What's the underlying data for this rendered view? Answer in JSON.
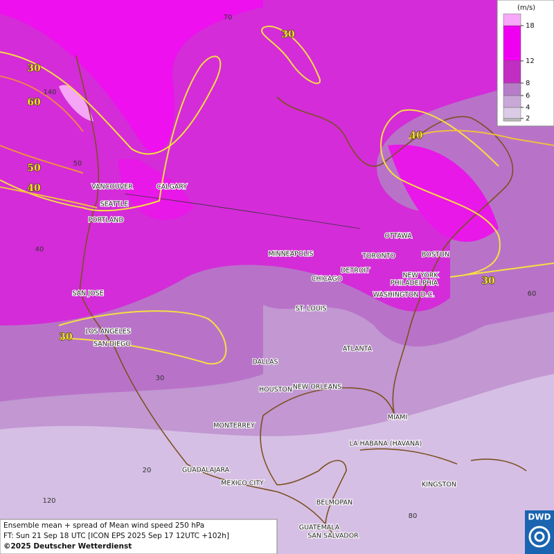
{
  "map": {
    "cities": [
      "VANCOUVER",
      "CALGARY",
      "SEATTLE",
      "PORTLAND",
      "MINNEAPOLIS",
      "TORONTO",
      "OTTAWA",
      "BOSTON",
      "DETROIT",
      "CHICAGO",
      "NEW YORK",
      "PHILADELPHIA",
      "WASHINGTON D.C.",
      "SAN JOSE",
      "ST. LOUIS",
      "LOS ANGELES",
      "SAN DIEGO",
      "ATLANTA",
      "DALLAS",
      "HOUSTON",
      "NEW ORLEANS",
      "MIAMI",
      "MONTERREY",
      "LA HABANA (HAVANA)",
      "GUADALAJARA",
      "MEXICO CITY",
      "KINGSTON",
      "BELMOPAN",
      "GUATEMALA",
      "SAN SALVADOR"
    ],
    "contour_labels": [
      "30",
      "30",
      "60",
      "50",
      "40",
      "40",
      "30",
      "30"
    ],
    "grid_labels": [
      "70",
      "140",
      "50",
      "40",
      "30",
      "20",
      "120",
      "60",
      "80"
    ]
  },
  "legend": {
    "unit": "(m/s)",
    "ticks": [
      2,
      4,
      6,
      8,
      12,
      18
    ],
    "colors": [
      "#bdbdbd",
      "#dccbe6",
      "#c9a8d8",
      "#b67cc8",
      "#c22ec2",
      "#f000f0",
      "#f8a8f8"
    ]
  },
  "footer": {
    "lines": [
      "Ensemble mean + spread of Mean wind speed 250 hPa",
      "FT: Sun 21 Sep 18 UTC [ICON EPS 2025 Sep 17 12UTC +102h]",
      "©2025 Deutscher Wetterdienst"
    ]
  },
  "logo": "DWD"
}
